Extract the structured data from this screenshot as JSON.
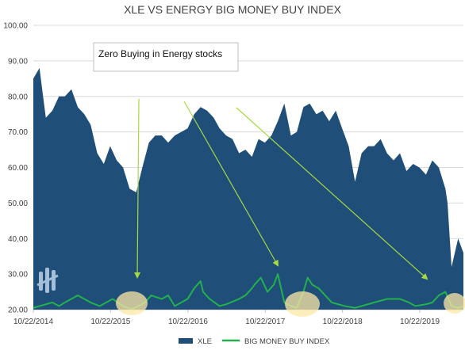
{
  "chart_data": {
    "type": "area",
    "title": "XLE VS ENERGY BIG MONEY BUY INDEX",
    "xlabel": "",
    "ylabel": "",
    "ylim": [
      20,
      100
    ],
    "y_ticks": [
      "20.00",
      "30.00",
      "40.00",
      "50.00",
      "60.00",
      "70.00",
      "80.00",
      "90.00",
      "100.00"
    ],
    "x_ticks": [
      "10/22/2014",
      "10/22/2015",
      "10/22/2016",
      "10/22/2017",
      "10/22/2018",
      "10/22/2019"
    ],
    "x_range": [
      "10/22/2014",
      "5/15/2020"
    ],
    "grid": true,
    "legend": "bottom",
    "series": [
      {
        "name": "XLE",
        "kind": "area",
        "color": "#1f4e79",
        "x": [
          "10/22/2014",
          "11/20/2014",
          "12/20/2014",
          "1/20/2015",
          "2/20/2015",
          "3/20/2015",
          "4/20/2015",
          "5/20/2015",
          "6/20/2015",
          "7/20/2015",
          "8/20/2015",
          "9/20/2015",
          "10/20/2015",
          "11/20/2015",
          "12/20/2015",
          "1/20/2016",
          "2/20/2016",
          "3/20/2016",
          "4/20/2016",
          "5/20/2016",
          "6/20/2016",
          "7/20/2016",
          "8/20/2016",
          "9/20/2016",
          "10/20/2016",
          "11/20/2016",
          "12/20/2016",
          "1/20/2017",
          "2/20/2017",
          "3/20/2017",
          "4/20/2017",
          "5/20/2017",
          "6/20/2017",
          "7/20/2017",
          "8/20/2017",
          "9/20/2017",
          "10/20/2017",
          "11/20/2017",
          "12/20/2017",
          "1/20/2018",
          "2/20/2018",
          "3/20/2018",
          "4/20/2018",
          "5/20/2018",
          "6/20/2018",
          "7/20/2018",
          "8/20/2018",
          "9/20/2018",
          "10/20/2018",
          "11/20/2018",
          "12/20/2018",
          "1/20/2019",
          "2/20/2019",
          "3/20/2019",
          "4/20/2019",
          "5/20/2019",
          "6/20/2019",
          "7/20/2019",
          "8/20/2019",
          "9/20/2019",
          "10/20/2019",
          "11/20/2019",
          "12/20/2019",
          "1/20/2020",
          "2/20/2020",
          "3/1/2020",
          "3/20/2020",
          "4/20/2020",
          "5/15/2020"
        ],
        "values": [
          85,
          88,
          74,
          76,
          80,
          80,
          82,
          77,
          75,
          72,
          64,
          61,
          66,
          62,
          60,
          54,
          53,
          60,
          67,
          69,
          69,
          67,
          69,
          70,
          71,
          75,
          77,
          76,
          74,
          71,
          69,
          68,
          64,
          65,
          63,
          68,
          67,
          69,
          73,
          78,
          69,
          70,
          77,
          78,
          75,
          76,
          73,
          76,
          71,
          66,
          56,
          64,
          66,
          66,
          68,
          64,
          62,
          64,
          59,
          61,
          60,
          58,
          62,
          60,
          54,
          50,
          32,
          40,
          36
        ]
      },
      {
        "name": "BIG MONEY BUY INDEX",
        "kind": "line",
        "color": "#22b14c",
        "x": [
          "10/22/2014",
          "12/20/2014",
          "1/20/2015",
          "2/20/2015",
          "3/20/2015",
          "5/20/2015",
          "7/20/2015",
          "9/1/2015",
          "10/1/2015",
          "11/1/2015",
          "12/20/2015",
          "1/20/2016",
          "2/1/2016",
          "3/1/2016",
          "4/1/2016",
          "5/1/2016",
          "6/20/2016",
          "7/20/2016",
          "8/20/2016",
          "9/20/2016",
          "10/20/2016",
          "11/20/2016",
          "12/20/2016",
          "1/1/2017",
          "2/1/2017",
          "3/20/2017",
          "4/20/2017",
          "6/20/2017",
          "7/20/2017",
          "8/20/2017",
          "9/1/2017",
          "10/1/2017",
          "11/1/2017",
          "12/1/2017",
          "12/20/2017",
          "1/20/2018",
          "2/20/2018",
          "3/20/2018",
          "4/20/2018",
          "5/10/2018",
          "6/1/2018",
          "7/1/2018",
          "9/1/2018",
          "11/1/2018",
          "12/20/2018",
          "1/20/2019",
          "3/20/2019",
          "5/20/2019",
          "7/20/2019",
          "9/1/2019",
          "10/1/2019",
          "11/20/2019",
          "12/20/2019",
          "1/20/2020",
          "2/20/2020",
          "3/20/2020",
          "4/20/2020",
          "5/15/2020"
        ],
        "values": [
          20.5,
          21.5,
          22,
          21,
          22,
          24,
          22,
          21,
          22,
          23,
          21,
          20.3,
          20.2,
          21,
          22,
          24,
          23,
          24,
          21,
          22,
          23,
          26,
          28,
          25,
          23,
          21,
          21.5,
          23,
          24,
          26,
          27,
          29,
          25,
          27,
          30,
          22,
          21,
          20.5,
          25,
          29,
          27,
          26,
          22,
          21,
          20.5,
          21,
          22,
          23,
          23,
          22,
          21,
          21.5,
          22,
          24,
          25,
          21,
          20.5,
          21
        ]
      }
    ],
    "annotations": [
      {
        "label": "Zero Buying in Energy stocks"
      }
    ]
  }
}
